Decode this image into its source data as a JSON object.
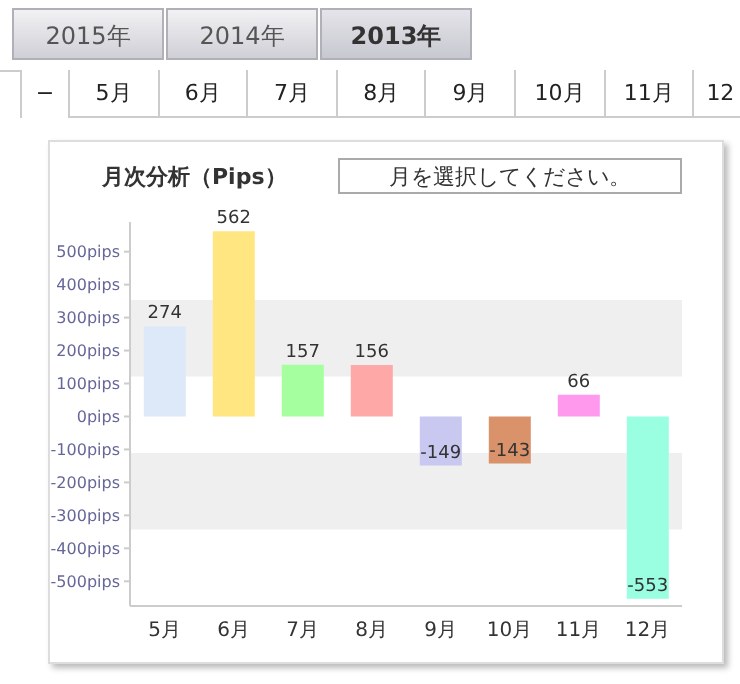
{
  "chart_data": {
    "type": "bar",
    "title": "月次分析（Pips）",
    "annotations": [
      "2015年",
      "2014年",
      "2013年",
      "−",
      "5月",
      "6月",
      "7月",
      "8月",
      "9月",
      "10月",
      "11月",
      "12",
      "月を選択してください。"
    ],
    "categories": [
      "5月",
      "6月",
      "7月",
      "8月",
      "9月",
      "10月",
      "11月",
      "12月"
    ],
    "values": [
      274,
      562,
      157,
      156,
      -149,
      -143,
      66,
      -553
    ],
    "colors": [
      "#dde9f8",
      "#ffe680",
      "#a6ff9f",
      "#ffa8a8",
      "#c8c8f0",
      "#d9926a",
      "#ff99ee",
      "#99ffe0"
    ],
    "data_labels": true,
    "ylim": [
      -575,
      590
    ],
    "yticks": [
      {
        "value": -500,
        "label": "-500pips"
      },
      {
        "value": -400,
        "label": "-400pips"
      },
      {
        "value": -300,
        "label": "-300pips"
      },
      {
        "value": -200,
        "label": "-200pips"
      },
      {
        "value": -100,
        "label": "-100pips"
      },
      {
        "value": 0,
        "label": "0pips"
      },
      {
        "value": 100,
        "label": "100pips"
      },
      {
        "value": 200,
        "label": "200pips"
      },
      {
        "value": 300,
        "label": "300pips"
      },
      {
        "value": 400,
        "label": "400pips"
      },
      {
        "value": 500,
        "label": "500pips"
      }
    ],
    "bands": [
      {
        "axis": "y",
        "from": 121,
        "to": 353,
        "color": "#efefef"
      },
      {
        "axis": "y",
        "from": -343,
        "to": -111,
        "color": "#efefef"
      }
    ],
    "grid": false,
    "legend": false
  }
}
